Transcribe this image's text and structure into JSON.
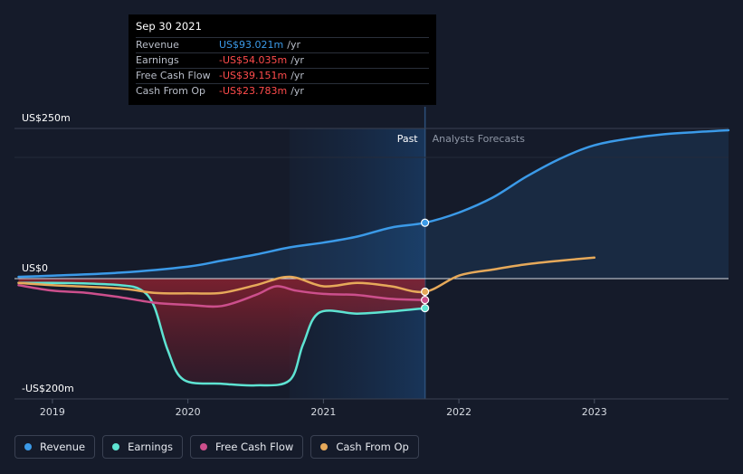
{
  "tooltip": {
    "date": "Sep 30 2021",
    "rows": [
      {
        "label": "Revenue",
        "value": "US$93.021m",
        "unit": "/yr",
        "color": "#3b9ae8"
      },
      {
        "label": "Earnings",
        "value": "-US$54.035m",
        "unit": "/yr",
        "color": "#ff4c4c"
      },
      {
        "label": "Free Cash Flow",
        "value": "-US$39.151m",
        "unit": "/yr",
        "color": "#ff4c4c"
      },
      {
        "label": "Cash From Op",
        "value": "-US$23.783m",
        "unit": "/yr",
        "color": "#ff4c4c"
      }
    ]
  },
  "chart_data": {
    "type": "line",
    "y_tick_labels": [
      "US$250m",
      "US$0",
      "-US$200m"
    ],
    "ylim": [
      -200,
      250
    ],
    "xlim": [
      2018.72,
      2023.99
    ],
    "x_tick_labels": [
      "2019",
      "2020",
      "2021",
      "2022",
      "2023"
    ],
    "x_ticks": [
      2019,
      2020,
      2021,
      2022,
      2023
    ],
    "past_label": "Past",
    "forecast_label": "Analysts Forecasts",
    "past_end": 2021.75,
    "highlight_start": 2020.75,
    "grid": false,
    "legend_position": "bottom-left",
    "series": [
      {
        "name": "Revenue",
        "color": "#3b9ae8",
        "points": [
          [
            2018.75,
            3
          ],
          [
            2019.0,
            5
          ],
          [
            2019.5,
            10
          ],
          [
            2020.0,
            20
          ],
          [
            2020.25,
            30
          ],
          [
            2020.5,
            40
          ],
          [
            2020.75,
            52
          ],
          [
            2021.0,
            60
          ],
          [
            2021.25,
            70
          ],
          [
            2021.5,
            85
          ],
          [
            2021.75,
            93
          ],
          [
            2022.0,
            110
          ],
          [
            2022.25,
            135
          ],
          [
            2022.5,
            170
          ],
          [
            2022.75,
            200
          ],
          [
            2023.0,
            222
          ],
          [
            2023.25,
            233
          ],
          [
            2023.5,
            240
          ],
          [
            2023.75,
            244
          ],
          [
            2023.99,
            247
          ]
        ]
      },
      {
        "name": "Earnings",
        "color": "#5ee3d2",
        "points": [
          [
            2018.75,
            -8
          ],
          [
            2019.0,
            -8
          ],
          [
            2019.25,
            -9
          ],
          [
            2019.5,
            -12
          ],
          [
            2019.65,
            -20
          ],
          [
            2019.75,
            -50
          ],
          [
            2019.85,
            -130
          ],
          [
            2019.97,
            -185
          ],
          [
            2020.25,
            -192
          ],
          [
            2020.5,
            -195
          ],
          [
            2020.75,
            -186
          ],
          [
            2020.85,
            -120
          ],
          [
            2020.97,
            -62
          ],
          [
            2021.25,
            -64
          ],
          [
            2021.5,
            -60
          ],
          [
            2021.75,
            -54
          ]
        ]
      },
      {
        "name": "Free Cash Flow",
        "color": "#cc4f8c",
        "points": [
          [
            2018.75,
            -12
          ],
          [
            2019.0,
            -22
          ],
          [
            2019.25,
            -26
          ],
          [
            2019.5,
            -34
          ],
          [
            2019.75,
            -44
          ],
          [
            2020.0,
            -48
          ],
          [
            2020.25,
            -50
          ],
          [
            2020.5,
            -30
          ],
          [
            2020.65,
            -14
          ],
          [
            2020.8,
            -22
          ],
          [
            2021.0,
            -28
          ],
          [
            2021.25,
            -30
          ],
          [
            2021.5,
            -37
          ],
          [
            2021.75,
            -39
          ]
        ]
      },
      {
        "name": "Cash From Op",
        "color": "#e6a95a",
        "points": [
          [
            2018.75,
            -8
          ],
          [
            2019.0,
            -12
          ],
          [
            2019.5,
            -18
          ],
          [
            2019.75,
            -26
          ],
          [
            2020.0,
            -27
          ],
          [
            2020.25,
            -26
          ],
          [
            2020.5,
            -12
          ],
          [
            2020.75,
            3
          ],
          [
            2021.0,
            -14
          ],
          [
            2021.25,
            -8
          ],
          [
            2021.5,
            -14
          ],
          [
            2021.75,
            -24
          ],
          [
            2022.0,
            5
          ],
          [
            2022.25,
            15
          ],
          [
            2022.5,
            24
          ],
          [
            2022.75,
            30
          ],
          [
            2023.0,
            35
          ]
        ]
      }
    ]
  }
}
